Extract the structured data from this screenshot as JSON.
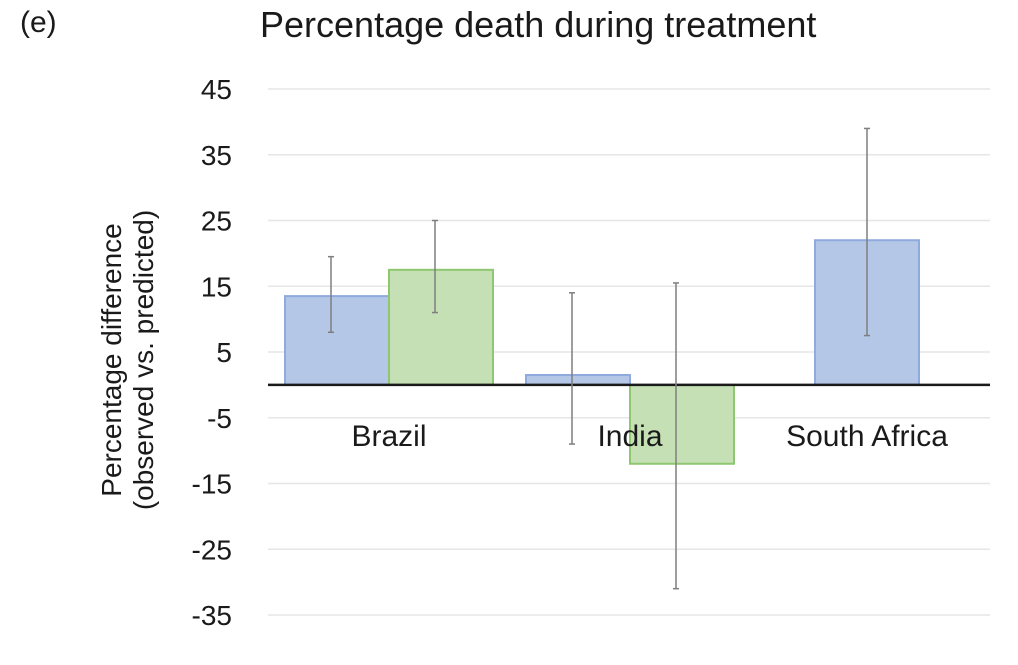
{
  "panel_label": "(e)",
  "chart_data": {
    "type": "bar",
    "title": "Percentage death during treatment",
    "ylabel_lines": [
      "Percentage difference",
      "(observed vs. predicted)"
    ],
    "xlabel": "",
    "categories": [
      "Brazil",
      "India",
      "South Africa"
    ],
    "ylim": [
      -35,
      45
    ],
    "yticks": [
      45,
      35,
      25,
      15,
      5,
      -5,
      -15,
      -25,
      -35
    ],
    "grid": true,
    "legend": "none",
    "colors": {
      "series1_fill": "#b4c7e7",
      "series1_stroke": "#8faadc",
      "series2_fill": "#c5e0b4",
      "series2_stroke": "#8fc670",
      "error_bar": "#7f7f7f",
      "grid": "#e6e6e6",
      "axis": "#1a1a1a"
    },
    "series": [
      {
        "values": [
          13.5,
          1.5,
          22
        ],
        "error_low": [
          8,
          -9,
          7.5
        ],
        "error_high": [
          19.5,
          14,
          39
        ]
      },
      {
        "values": [
          17.5,
          -12,
          null
        ],
        "error_low": [
          11,
          -31,
          null
        ],
        "error_high": [
          25,
          15.5,
          null
        ]
      }
    ]
  }
}
